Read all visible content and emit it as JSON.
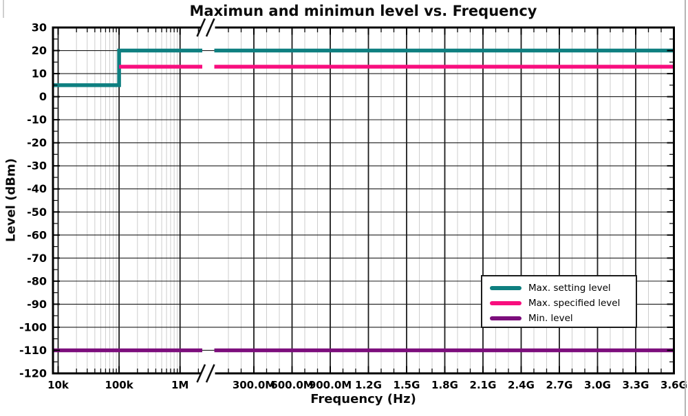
{
  "chart_data": {
    "type": "line",
    "title": "Maximun and minimun level vs. Frequency",
    "xlabel": "Frequency (Hz)",
    "ylabel": "Level (dBm)",
    "grid": "major gridlines dark (every 10 dBm and every x major tick), minor gridlines light gray (log decades and every 100 MHz), minor y ticks every 5 dBm without gridlines",
    "legend_position": "inside lower right",
    "x_break_symbol": "//",
    "y_axis": {
      "min": -120,
      "max": 30,
      "major_step": 10,
      "minor_step": 5,
      "major_tick_labels": [
        "30",
        "20",
        "10",
        "0",
        "-10",
        "-20",
        "-30",
        "-40",
        "-50",
        "-60",
        "-70",
        "-80",
        "-90",
        "-100",
        "-110",
        "-120"
      ]
    },
    "x_axis": {
      "scale": "broken axis: logarithmic 10 kHz - 2 MHz, break //, then linear 0 - 3.6 GHz",
      "log_segment": {
        "min_hz": 10000,
        "max_hz": 2000000,
        "major_ticks": [
          {
            "hz": 10000,
            "label": "10k"
          },
          {
            "hz": 100000,
            "label": "100k"
          },
          {
            "hz": 1000000,
            "label": "1M"
          }
        ]
      },
      "linear_segment": {
        "min_hz": 0,
        "max_hz": 3600000000,
        "major_step_hz": 300000000,
        "minor_step_hz": 100000000,
        "major_ticks": [
          {
            "hz": 300000000,
            "label": "300.0M"
          },
          {
            "hz": 600000000,
            "label": "600.0M"
          },
          {
            "hz": 900000000,
            "label": "900.0M"
          },
          {
            "hz": 1200000000,
            "label": "1.2G"
          },
          {
            "hz": 1500000000,
            "label": "1.5G"
          },
          {
            "hz": 1800000000,
            "label": "1.8G"
          },
          {
            "hz": 2100000000,
            "label": "2.1G"
          },
          {
            "hz": 2400000000,
            "label": "2.4G"
          },
          {
            "hz": 2700000000,
            "label": "2.7G"
          },
          {
            "hz": 3000000000,
            "label": "3.0G"
          },
          {
            "hz": 3300000000,
            "label": "3.3G"
          },
          {
            "hz": 3600000000,
            "label": "3.6G"
          }
        ]
      }
    },
    "series": [
      {
        "name": "Max. setting level",
        "color": "#0e7f80",
        "points_hz_dbm": [
          [
            10000,
            5
          ],
          [
            100000,
            5
          ],
          [
            100000,
            20
          ],
          [
            3600000000,
            20
          ]
        ]
      },
      {
        "name": "Max. specified level",
        "color": "#f80e7e",
        "points_hz_dbm": [
          [
            100000,
            13
          ],
          [
            3600000000,
            13
          ]
        ]
      },
      {
        "name": "Min. level",
        "color": "#7c0e7c",
        "points_hz_dbm": [
          [
            10000,
            -110
          ],
          [
            3600000000,
            -110
          ]
        ]
      }
    ]
  },
  "colors": {
    "grid_minor": "#cdcdcd",
    "grid_major": "#1b1b1b",
    "axis": "#000000",
    "text": "#000000",
    "legend_border": "#1a1a1a",
    "legend_bg": "#ffffff"
  }
}
